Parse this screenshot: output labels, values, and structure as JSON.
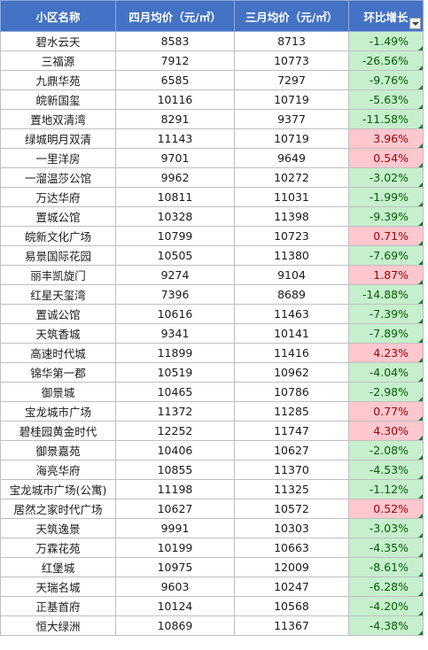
{
  "headers": {
    "name": "小区名称",
    "april": "四月均价（元/㎡）",
    "march": "三月均价（元/㎡）",
    "change": "环比增长"
  },
  "colors": {
    "header_bg": "#4472c4",
    "decrease_bg": "#c6efce",
    "increase_bg": "#ffc7ce"
  },
  "rows": [
    {
      "name": "碧水云天",
      "april": "8583",
      "march": "8713",
      "change": "-1.49%"
    },
    {
      "name": "三福源",
      "april": "7912",
      "march": "10773",
      "change": "-26.56%"
    },
    {
      "name": "九鼎华苑",
      "april": "6585",
      "march": "7297",
      "change": "-9.76%"
    },
    {
      "name": "皖新国玺",
      "april": "10116",
      "march": "10719",
      "change": "-5.63%"
    },
    {
      "name": "置地双清湾",
      "april": "8291",
      "march": "9377",
      "change": "-11.58%"
    },
    {
      "name": "绿城明月双清",
      "april": "11143",
      "march": "10719",
      "change": "3.96%"
    },
    {
      "name": "一里洋房",
      "april": "9701",
      "march": "9649",
      "change": "0.54%"
    },
    {
      "name": "一溜温莎公馆",
      "april": "9962",
      "march": "10272",
      "change": "-3.02%"
    },
    {
      "name": "万达华府",
      "april": "10811",
      "march": "11031",
      "change": "-1.99%"
    },
    {
      "name": "置城公馆",
      "april": "10328",
      "march": "11398",
      "change": "-9.39%"
    },
    {
      "name": "皖新文化广场",
      "april": "10799",
      "march": "10723",
      "change": "0.71%"
    },
    {
      "name": "易景国际花园",
      "april": "10505",
      "march": "11380",
      "change": "-7.69%"
    },
    {
      "name": "丽丰凯旋门",
      "april": "9274",
      "march": "9104",
      "change": "1.87%"
    },
    {
      "name": "红星天玺湾",
      "april": "7396",
      "march": "8689",
      "change": "-14.88%"
    },
    {
      "name": "置诚公馆",
      "april": "10616",
      "march": "11463",
      "change": "-7.39%"
    },
    {
      "name": "天筑香城",
      "april": "9341",
      "march": "10141",
      "change": "-7.89%"
    },
    {
      "name": "高速时代城",
      "april": "11899",
      "march": "11416",
      "change": "4.23%"
    },
    {
      "name": "锦华第一郡",
      "april": "10519",
      "march": "10962",
      "change": "-4.04%"
    },
    {
      "name": "御景城",
      "april": "10465",
      "march": "10786",
      "change": "-2.98%"
    },
    {
      "name": "宝龙城市广场",
      "april": "11372",
      "march": "11285",
      "change": "0.77%"
    },
    {
      "name": "碧桂园黄金时代",
      "april": "12252",
      "march": "11747",
      "change": "4.30%"
    },
    {
      "name": "御景嘉苑",
      "april": "10406",
      "march": "10627",
      "change": "-2.08%"
    },
    {
      "name": "海亮华府",
      "april": "10855",
      "march": "11370",
      "change": "-4.53%"
    },
    {
      "name": "宝龙城市广场(公寓)",
      "april": "11198",
      "march": "11325",
      "change": "-1.12%"
    },
    {
      "name": "居然之家时代广场",
      "april": "10627",
      "march": "10572",
      "change": "0.52%"
    },
    {
      "name": "天筑逸景",
      "april": "9991",
      "march": "10303",
      "change": "-3.03%"
    },
    {
      "name": "万霖花苑",
      "april": "10199",
      "march": "10663",
      "change": "-4.35%"
    },
    {
      "name": "红堡城",
      "april": "10975",
      "march": "12009",
      "change": "-8.61%"
    },
    {
      "name": "天瑞名城",
      "april": "9603",
      "march": "10247",
      "change": "-6.28%"
    },
    {
      "name": "正基首府",
      "april": "10124",
      "march": "10568",
      "change": "-4.20%"
    },
    {
      "name": "恒大绿洲",
      "april": "10869",
      "march": "11367",
      "change": "-4.38%"
    }
  ]
}
